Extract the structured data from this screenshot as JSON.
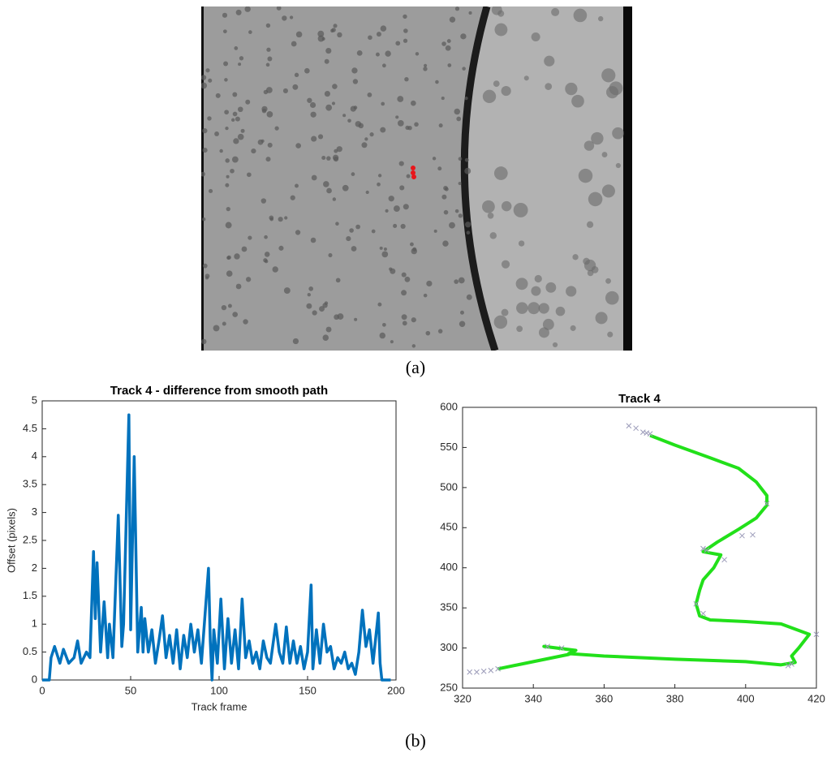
{
  "captions": [
    "(a)",
    "(b)"
  ],
  "chart_data": [
    {
      "type": "line",
      "title": "Track 4 - difference from smooth path",
      "x_label": "Track frame",
      "y_label": "Offset (pixels)",
      "color": "#0072bd",
      "x": [
        0,
        4,
        5,
        7,
        10,
        12,
        15,
        18,
        20,
        22,
        25,
        27,
        29,
        30,
        31,
        33,
        35,
        37,
        38,
        40,
        43,
        45,
        46,
        49,
        50,
        52,
        54,
        56,
        57,
        58,
        60,
        62,
        64,
        66,
        68,
        70,
        72,
        74,
        76,
        78,
        80,
        82,
        84,
        86,
        88,
        90,
        94,
        95,
        96,
        97,
        99,
        101,
        103,
        105,
        107,
        109,
        111,
        113,
        115,
        117,
        119,
        121,
        123,
        125,
        127,
        129,
        132,
        134,
        136,
        138,
        140,
        142,
        144,
        146,
        148,
        150,
        152,
        153,
        155,
        157,
        159,
        161,
        163,
        165,
        167,
        169,
        171,
        173,
        175,
        177,
        179,
        181,
        183,
        185,
        187,
        188,
        190,
        191,
        192,
        197
      ],
      "values": [
        0,
        0,
        0.4,
        0.6,
        0.3,
        0.55,
        0.3,
        0.4,
        0.7,
        0.3,
        0.5,
        0.4,
        2.3,
        1.1,
        2.1,
        0.5,
        1.4,
        0.4,
        1.0,
        0.4,
        2.95,
        0.6,
        1.0,
        4.75,
        0.9,
        4.0,
        0.5,
        1.3,
        0.5,
        1.1,
        0.5,
        0.9,
        0.3,
        0.7,
        1.15,
        0.4,
        0.8,
        0.3,
        0.9,
        0.2,
        0.8,
        0.4,
        1.0,
        0.5,
        0.9,
        0.3,
        2.0,
        0.7,
        0,
        0.9,
        0.3,
        1.45,
        0.2,
        1.1,
        0.3,
        0.9,
        0.2,
        1.45,
        0.4,
        0.7,
        0.3,
        0.5,
        0.2,
        0.7,
        0.4,
        0.3,
        1.0,
        0.5,
        0.3,
        0.95,
        0.3,
        0.7,
        0.3,
        0.6,
        0.2,
        0.5,
        1.7,
        0.2,
        0.9,
        0.3,
        1.0,
        0.5,
        0.6,
        0.2,
        0.4,
        0.3,
        0.5,
        0.2,
        0.3,
        0.1,
        0.5,
        1.25,
        0.6,
        0.9,
        0.3,
        0.6,
        1.2,
        0.3,
        0,
        0
      ],
      "xlim": [
        0,
        200
      ],
      "xticks": [
        0,
        50,
        100,
        150,
        200
      ],
      "ylim": [
        0,
        5
      ],
      "yticks": [
        0,
        0.5,
        1,
        1.5,
        2,
        2.5,
        3,
        3.5,
        4,
        4.5,
        5
      ]
    },
    {
      "type": "path",
      "title": "Track 4",
      "series": [
        {
          "color": "#22e01a",
          "style": "line",
          "x": [
            373,
            380,
            390,
            398,
            403,
            406,
            406,
            403,
            398,
            392,
            388,
            393,
            391,
            388,
            387,
            386,
            387,
            390,
            400,
            410,
            418,
            415,
            413,
            414,
            410,
            400,
            380,
            360,
            350,
            352,
            343,
            352,
            350,
            340,
            330
          ],
          "values": [
            565,
            553,
            537,
            524,
            507,
            490,
            478,
            462,
            448,
            432,
            420,
            416,
            400,
            385,
            372,
            355,
            340,
            335,
            333,
            330,
            317,
            300,
            290,
            282,
            279,
            283,
            286,
            290,
            293,
            297,
            302,
            297,
            292,
            283,
            274
          ]
        },
        {
          "color": "#9a9ab8",
          "style": "x",
          "x": [
            367,
            369,
            371,
            372,
            373,
            388,
            389,
            394,
            399,
            402,
            386,
            388,
            406,
            420,
            413,
            412,
            344,
            348,
            322,
            324,
            326,
            328,
            330
          ],
          "values": [
            577,
            574,
            569,
            568,
            567,
            424,
            422,
            410,
            440,
            441,
            355,
            343,
            480,
            317,
            280,
            278,
            302,
            300,
            270,
            270,
            271,
            272,
            274
          ]
        }
      ],
      "xlim": [
        320,
        420
      ],
      "xticks": [
        320,
        340,
        360,
        380,
        400,
        420
      ],
      "ylim": [
        250,
        600
      ],
      "yticks": [
        250,
        300,
        350,
        400,
        450,
        500,
        550,
        600
      ]
    }
  ]
}
